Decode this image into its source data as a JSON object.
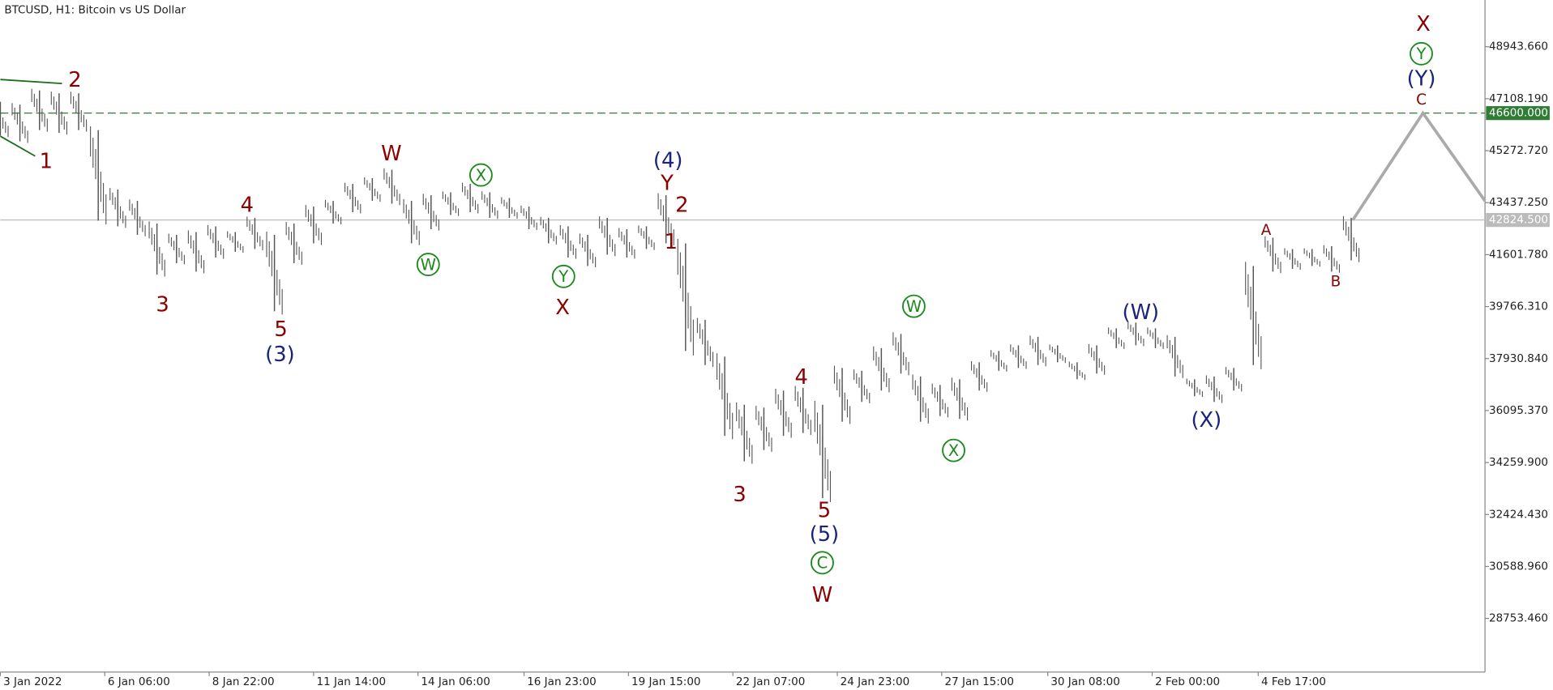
{
  "chart_data": {
    "type": "bars",
    "title": "BTCUSD, H1:  Bitcoin vs US Dollar",
    "color": "#555555",
    "x": [
      14,
      26,
      38,
      50,
      62,
      74,
      86,
      98,
      110,
      122,
      134,
      146,
      158,
      170,
      182,
      194,
      206,
      218,
      230,
      242,
      254,
      266,
      278,
      290,
      302,
      314,
      326,
      338,
      350,
      362,
      374,
      386,
      398,
      410,
      422,
      434,
      446,
      458,
      470,
      482,
      494,
      506,
      518,
      530,
      542,
      554,
      566,
      578,
      590,
      602,
      614,
      626,
      638,
      650,
      662,
      674,
      686,
      698,
      710,
      722,
      734,
      746,
      758,
      770,
      782,
      794,
      806,
      818,
      830,
      842
    ],
    "high": [
      47000,
      46900,
      47400,
      47300,
      47300,
      46000,
      43900,
      43500,
      42700,
      42300,
      42400,
      42600,
      42400,
      42900,
      42300,
      42700,
      43300,
      43500,
      44100,
      44300,
      44600,
      43500,
      43700,
      43800,
      44100,
      43800,
      43600,
      43300,
      42900,
      42600,
      42300,
      42900,
      42500,
      42600,
      43700,
      42000,
      39300,
      38000,
      36300,
      36200,
      36800,
      36900,
      36300,
      37600,
      37500,
      38300,
      38800,
      37300,
      37000,
      37200,
      37800,
      38200,
      38400,
      38700,
      38400,
      37800,
      38400,
      39000,
      39200,
      39000,
      38700,
      37200,
      37300,
      37600,
      41200,
      42200,
      41800,
      41800,
      41900,
      42900
    ],
    "low": [
      45800,
      45600,
      46000,
      45900,
      46000,
      42800,
      42600,
      42300,
      40900,
      41300,
      41000,
      41500,
      41700,
      41800,
      39600,
      41300,
      42000,
      42700,
      43100,
      43500,
      43400,
      42000,
      42500,
      43000,
      43100,
      42900,
      42900,
      42500,
      42000,
      41500,
      41200,
      41600,
      41500,
      41800,
      42000,
      38200,
      37700,
      35200,
      34300,
      34700,
      35200,
      35300,
      33000,
      35700,
      36400,
      36800,
      37400,
      35700,
      35900,
      35800,
      36800,
      37500,
      37600,
      37700,
      37800,
      37200,
      37400,
      38300,
      38400,
      38300,
      37300,
      36600,
      36400,
      36800,
      37700,
      41000,
      41100,
      41200,
      41000,
      41400
    ],
    "projection": {
      "color": "#aaaaaa",
      "x": [
        843,
        886,
        924
      ],
      "values": [
        42824.5,
        46600,
        43500
      ]
    },
    "levels": [
      {
        "value": 46600,
        "label": "46600.000",
        "color": "#2e7d32",
        "dashed": true
      },
      {
        "value": 42824.5,
        "label": "42824.500",
        "color": "#bbbbbb",
        "dashed": false
      }
    ],
    "xlim": [
      14,
      924
    ],
    "ylim": [
      26858,
      50594
    ],
    "xticks": [
      {
        "value": 14,
        "label": "3 Jan 2022"
      },
      {
        "value": 78,
        "label": "6 Jan 06:00"
      },
      {
        "value": 142,
        "label": "8 Jan 22:00"
      },
      {
        "value": 206,
        "label": "11 Jan 14:00"
      },
      {
        "value": 270,
        "label": "14 Jan 06:00"
      },
      {
        "value": 335,
        "label": "16 Jan 23:00"
      },
      {
        "value": 399,
        "label": "19 Jan 15:00"
      },
      {
        "value": 463,
        "label": "22 Jan 07:00"
      },
      {
        "value": 527,
        "label": "24 Jan 23:00"
      },
      {
        "value": 591,
        "label": "27 Jan 15:00"
      },
      {
        "value": 656,
        "label": "30 Jan 08:00"
      },
      {
        "value": 720,
        "label": "2 Feb 00:00"
      },
      {
        "value": 785,
        "label": "4 Feb 17:00"
      }
    ],
    "yticks": [
      {
        "value": 28753.46,
        "label": "28753.460"
      },
      {
        "value": 30588.96,
        "label": "30588.960"
      },
      {
        "value": 32424.43,
        "label": "32424.430"
      },
      {
        "value": 34259.9,
        "label": "34259.900"
      },
      {
        "value": 36095.37,
        "label": "36095.370"
      },
      {
        "value": 37930.84,
        "label": "37930.840"
      },
      {
        "value": 39766.31,
        "label": "39766.310"
      },
      {
        "value": 41601.78,
        "label": "41601.780"
      },
      {
        "value": 43437.25,
        "label": "43437.250"
      },
      {
        "value": 45272.72,
        "label": "45272.720"
      },
      {
        "value": 47108.19,
        "label": "47108.190"
      },
      {
        "value": 48943.66,
        "label": "48943.660"
      }
    ],
    "annotations": [
      {
        "text": "2",
        "color": "#8b0000"
      },
      {
        "text": "1",
        "color": "#8b0000"
      },
      {
        "text": "3",
        "color": "#8b0000"
      },
      {
        "text": "4",
        "color": "#8b0000"
      },
      {
        "text": "5",
        "color": "#8b0000"
      },
      {
        "text": "(3)",
        "color": "#1a237e"
      },
      {
        "text": "W",
        "color": "#8b0000"
      },
      {
        "text": "W",
        "color": "#1b8a1b",
        "circled": true
      },
      {
        "text": "X",
        "color": "#1b8a1b",
        "circled": true
      },
      {
        "text": "Y",
        "color": "#1b8a1b",
        "circled": true
      },
      {
        "text": "X",
        "color": "#8b0000"
      },
      {
        "text": "(4)",
        "color": "#1a237e"
      },
      {
        "text": "Y",
        "color": "#8b0000"
      },
      {
        "text": "2",
        "color": "#8b0000"
      },
      {
        "text": "1",
        "color": "#8b0000"
      },
      {
        "text": "3",
        "color": "#8b0000"
      },
      {
        "text": "4",
        "color": "#8b0000"
      },
      {
        "text": "5",
        "color": "#8b0000"
      },
      {
        "text": "(5)",
        "color": "#1a237e"
      },
      {
        "text": "C",
        "color": "#1b8a1b",
        "circled": true
      },
      {
        "text": "W",
        "color": "#8b0000"
      },
      {
        "text": "W",
        "color": "#1b8a1b",
        "circled": true
      },
      {
        "text": "X",
        "color": "#1b8a1b",
        "circled": true
      },
      {
        "text": "(W)",
        "color": "#1a237e"
      },
      {
        "text": "(X)",
        "color": "#1a237e"
      },
      {
        "text": "A",
        "color": "#8b0000",
        "small": true
      },
      {
        "text": "B",
        "color": "#8b0000",
        "small": true
      },
      {
        "text": "X",
        "color": "#8b0000"
      },
      {
        "text": "Y",
        "color": "#1b8a1b",
        "circled": true
      },
      {
        "text": "(Y)",
        "color": "#1a237e"
      },
      {
        "text": "C",
        "color": "#8b0000",
        "small": true
      }
    ]
  }
}
